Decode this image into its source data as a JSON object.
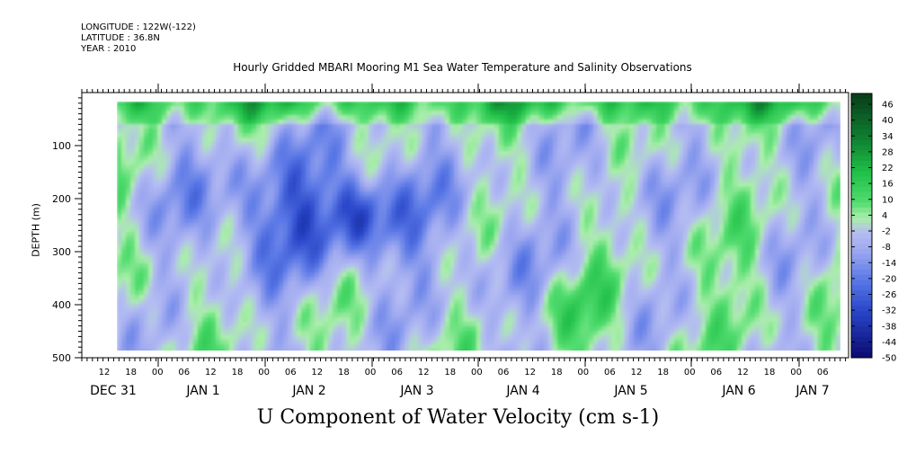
{
  "header": {
    "longitude": "LONGITUDE : 122W(-122)",
    "latitude": "LATITUDE : 36.8N",
    "year": "YEAR : 2010"
  },
  "chart_data": {
    "type": "heatmap",
    "title": "Hourly Gridded MBARI Mooring M1 Sea Water Temperature and Salinity Observations",
    "xlabel": "U Component of Water Velocity (cm s-1)",
    "ylabel": "DEPTH (m)",
    "ylim": [
      500,
      0
    ],
    "y_ticks": [
      100,
      200,
      300,
      400,
      500
    ],
    "data_depth_range": [
      20,
      490
    ],
    "x_hour_ticks": [
      "12",
      "18",
      "00",
      "06",
      "12",
      "18",
      "00",
      "06",
      "12",
      "18",
      "00",
      "06",
      "12",
      "18",
      "00",
      "06",
      "12",
      "18",
      "00",
      "06",
      "12",
      "18",
      "00",
      "06",
      "12",
      "18",
      "00",
      "06"
    ],
    "x_day_labels": [
      "DEC 31",
      "JAN  1",
      "JAN  2",
      "JAN  3",
      "JAN  4",
      "JAN  5",
      "JAN  6",
      "JAN  7"
    ],
    "colorbar_levels": [
      "46",
      "40",
      "34",
      "28",
      "22",
      "16",
      "10",
      "4",
      "-2",
      "-8",
      "-14",
      "-20",
      "-26",
      "-32",
      "-38",
      "-44",
      "-50"
    ],
    "colorbar_range": [
      -50,
      52
    ],
    "colors": {
      "dark_green": "#0a4a20",
      "green": "#22cc44",
      "light_green": "#99ee99",
      "light_blue": "#aab0ee",
      "blue": "#4466dd",
      "dark_blue": "#0a0a70"
    }
  }
}
